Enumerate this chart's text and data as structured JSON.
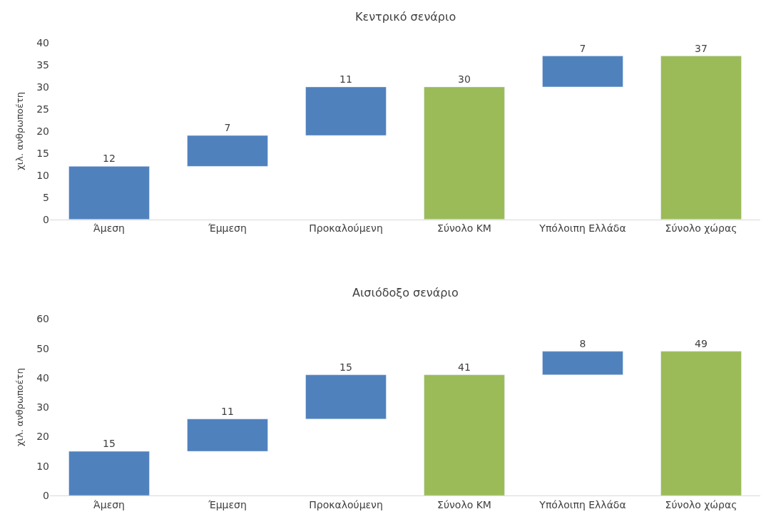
{
  "chart_data": [
    {
      "type": "bar",
      "title": "Κεντρικό σενάριο",
      "ylabel": "χιλ. ανθρωποέτη",
      "categories": [
        "Άμεση",
        "Έμμεση",
        "Προκαλούμενη",
        "Σύνολο ΚΜ",
        "Υπόλοιπη Ελλάδα",
        "Σύνολο χώρας"
      ],
      "values": [
        12,
        7,
        11,
        30,
        7,
        37
      ],
      "base": [
        0,
        12,
        19,
        0,
        30,
        0
      ],
      "colors": [
        "#4f81bd",
        "#4f81bd",
        "#4f81bd",
        "#9bbb59",
        "#4f81bd",
        "#9bbb59"
      ],
      "ylim": [
        0,
        40
      ],
      "yticks": [
        0,
        5,
        10,
        15,
        20,
        25,
        30,
        35,
        40
      ],
      "data_labels": true
    },
    {
      "type": "bar",
      "title": "Αισιόδοξο σενάριο",
      "ylabel": "χιλ. ανθρωποέτη",
      "categories": [
        "Άμεση",
        "Έμμεση",
        "Προκαλούμενη",
        "Σύνολο ΚΜ",
        "Υπόλοιπη Ελλάδα",
        "Σύνολο χώρας"
      ],
      "values": [
        15,
        11,
        15,
        41,
        8,
        49
      ],
      "base": [
        0,
        15,
        26,
        0,
        41,
        0
      ],
      "colors": [
        "#4f81bd",
        "#4f81bd",
        "#4f81bd",
        "#9bbb59",
        "#4f81bd",
        "#9bbb59"
      ],
      "ylim": [
        0,
        60
      ],
      "yticks": [
        0,
        10,
        20,
        30,
        40,
        50,
        60
      ],
      "data_labels": true
    }
  ]
}
